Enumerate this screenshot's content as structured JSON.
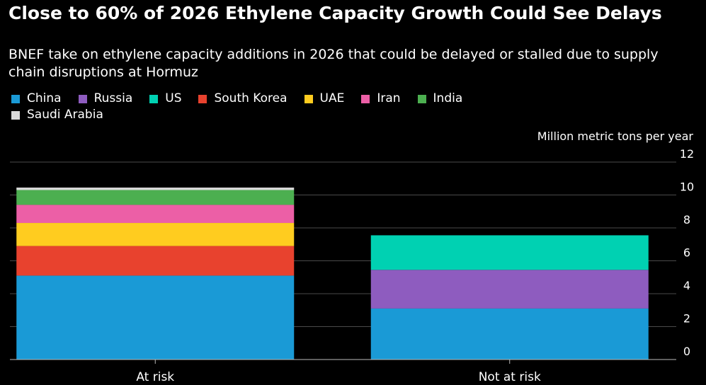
{
  "header": {
    "title": "Close to 60% of 2026 Ethylene Capacity Growth Could See Delays",
    "subtitle": "BNEF take on ethylene capacity additions in 2026 that could be delayed or stalled due to supply chain disruptions at Hormuz"
  },
  "chart_data": {
    "type": "bar",
    "stacked": true,
    "categories": [
      "At risk",
      "Not at risk"
    ],
    "ylabel": "Million metric tons per year",
    "ylim": [
      0,
      12
    ],
    "yticks": [
      0,
      2,
      4,
      6,
      8,
      10,
      12
    ],
    "grid": true,
    "legend_position": "top",
    "series": [
      {
        "name": "China",
        "color": "#1a9ad6",
        "values": [
          5.1,
          3.1
        ]
      },
      {
        "name": "Russia",
        "color": "#8e5cbf",
        "values": [
          0,
          2.35
        ]
      },
      {
        "name": "US",
        "color": "#00d1b2",
        "values": [
          0,
          2.1
        ]
      },
      {
        "name": "South Korea",
        "color": "#e8422e",
        "values": [
          1.8,
          0
        ]
      },
      {
        "name": "UAE",
        "color": "#ffcc1f",
        "values": [
          1.4,
          0
        ]
      },
      {
        "name": "Iran",
        "color": "#ec5fa6",
        "values": [
          1.1,
          0
        ]
      },
      {
        "name": "India",
        "color": "#4caf50",
        "values": [
          0.9,
          0
        ]
      },
      {
        "name": "Saudi Arabia",
        "color": "#d9d9d9",
        "values": [
          0.15,
          0
        ]
      }
    ]
  }
}
